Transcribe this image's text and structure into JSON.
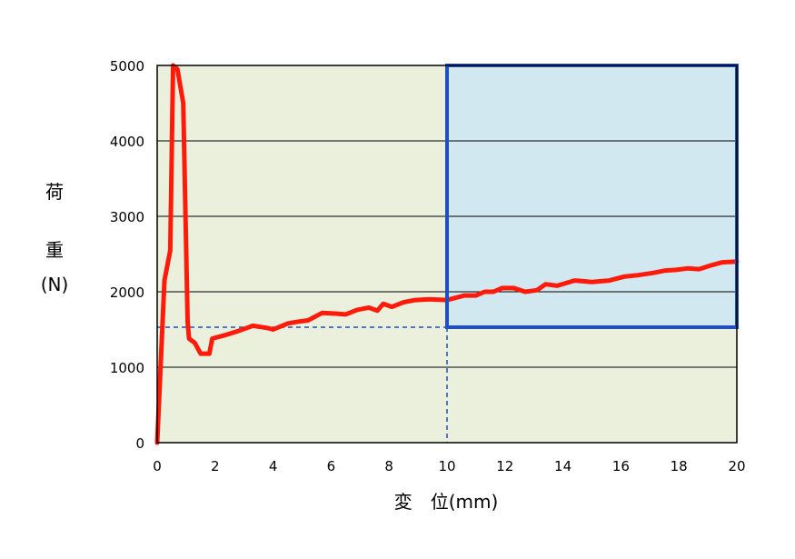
{
  "chart_data": {
    "type": "line",
    "xlabel": "変　位(mm)",
    "ylabel_chars": [
      "荷",
      "重",
      "(N)"
    ],
    "xlim": [
      0,
      20
    ],
    "ylim": [
      0,
      5000
    ],
    "x_ticks": [
      0,
      2,
      4,
      6,
      8,
      10,
      12,
      14,
      16,
      18,
      20
    ],
    "y_ticks": [
      0,
      1000,
      2000,
      3000,
      4000,
      5000
    ],
    "grid": "horizontal",
    "colors": {
      "background": "#eaf0dc",
      "highlight_fill": "#d2e8f0",
      "highlight_border": "#1f4fbf",
      "series": "#ff1a0a",
      "guide": "#1f4fbf",
      "grid": "#000000"
    },
    "highlight_region": {
      "x": [
        10,
        20
      ],
      "y": [
        1530,
        5000
      ]
    },
    "guide_lines": {
      "y": 1530,
      "x": 10
    },
    "series": [
      {
        "points": [
          [
            0,
            0
          ],
          [
            0.25,
            2150
          ],
          [
            0.45,
            2550
          ],
          [
            0.55,
            5000
          ],
          [
            0.7,
            4950
          ],
          [
            0.9,
            4500
          ],
          [
            1.05,
            1600
          ],
          [
            1.1,
            1380
          ],
          [
            1.3,
            1320
          ],
          [
            1.5,
            1180
          ],
          [
            1.8,
            1180
          ],
          [
            1.9,
            1380
          ],
          [
            2.3,
            1420
          ],
          [
            2.8,
            1480
          ],
          [
            3.3,
            1550
          ],
          [
            3.8,
            1520
          ],
          [
            4.0,
            1500
          ],
          [
            4.5,
            1580
          ],
          [
            4.8,
            1600
          ],
          [
            5.2,
            1620
          ],
          [
            5.7,
            1720
          ],
          [
            6.2,
            1710
          ],
          [
            6.5,
            1700
          ],
          [
            6.9,
            1760
          ],
          [
            7.3,
            1790
          ],
          [
            7.6,
            1750
          ],
          [
            7.8,
            1840
          ],
          [
            8.1,
            1800
          ],
          [
            8.5,
            1860
          ],
          [
            8.9,
            1890
          ],
          [
            9.4,
            1900
          ],
          [
            10.0,
            1890
          ],
          [
            10.6,
            1950
          ],
          [
            11.0,
            1950
          ],
          [
            11.3,
            2000
          ],
          [
            11.6,
            2000
          ],
          [
            11.9,
            2050
          ],
          [
            12.3,
            2050
          ],
          [
            12.7,
            2000
          ],
          [
            13.1,
            2020
          ],
          [
            13.4,
            2100
          ],
          [
            13.8,
            2080
          ],
          [
            14.4,
            2150
          ],
          [
            15.0,
            2130
          ],
          [
            15.6,
            2150
          ],
          [
            16.1,
            2200
          ],
          [
            16.6,
            2220
          ],
          [
            17.1,
            2250
          ],
          [
            17.5,
            2280
          ],
          [
            17.9,
            2290
          ],
          [
            18.3,
            2310
          ],
          [
            18.7,
            2300
          ],
          [
            19.1,
            2350
          ],
          [
            19.5,
            2390
          ],
          [
            20.0,
            2400
          ]
        ]
      }
    ]
  }
}
